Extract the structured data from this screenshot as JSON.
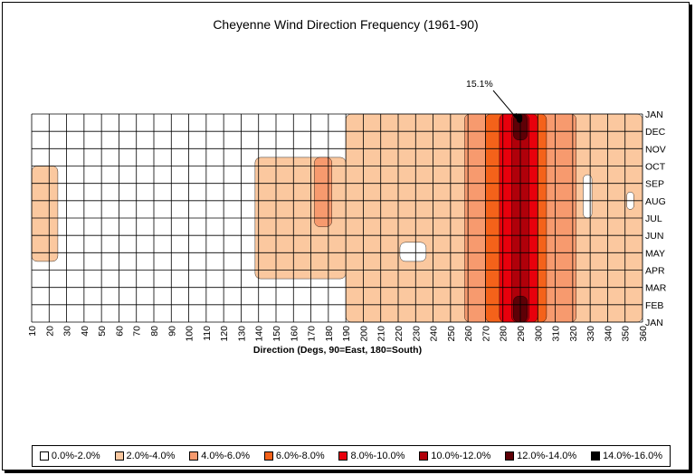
{
  "chart_data": {
    "type": "heatmap",
    "title": "Cheyenne Wind Direction Frequency (1961-90)",
    "xlabel": "Direction (Degs, 90=East, 180=South)",
    "ylabel": "",
    "x_ticks": [
      10,
      20,
      30,
      40,
      50,
      60,
      70,
      80,
      90,
      100,
      110,
      120,
      130,
      140,
      150,
      160,
      170,
      180,
      190,
      200,
      210,
      220,
      230,
      240,
      250,
      260,
      270,
      280,
      290,
      300,
      310,
      320,
      330,
      340,
      350,
      360
    ],
    "months": [
      "JAN",
      "FEB",
      "MAR",
      "APR",
      "MAY",
      "JUN",
      "JUL",
      "AUG",
      "SEP",
      "OCT",
      "NOV",
      "DEC",
      "JAN"
    ],
    "xlim": [
      10,
      360
    ],
    "annotation": {
      "text": "15.1%",
      "x": 290,
      "month": "JAN"
    },
    "legend": [
      {
        "label": "0.0%-2.0%",
        "color": "#ffffff"
      },
      {
        "label": "2.0%-4.0%",
        "color": "#fbc89f"
      },
      {
        "label": "4.0%-6.0%",
        "color": "#f79a6e"
      },
      {
        "label": "6.0%-8.0%",
        "color": "#f4621a"
      },
      {
        "label": "8.0%-10.0%",
        "color": "#e8000c"
      },
      {
        "label": "10.0%-12.0%",
        "color": "#b0000a"
      },
      {
        "label": "12.0%-14.0%",
        "color": "#5e0006"
      },
      {
        "label": "14.0%-16.0%",
        "color": "#000000"
      }
    ],
    "grid": true,
    "legend_position": "bottom",
    "regions": [
      {
        "level": 1,
        "months": [
          0,
          12
        ],
        "x": [
          190,
          360
        ]
      },
      {
        "level": 1,
        "months": [
          2.5,
          9.5
        ],
        "x": [
          138,
          190
        ]
      },
      {
        "level": 1,
        "months": [
          3.5,
          9
        ],
        "x": [
          10,
          25
        ]
      },
      {
        "level": 0,
        "months": [
          3.5,
          4.6
        ],
        "x": [
          221,
          236
        ]
      },
      {
        "level": 0,
        "months": [
          6,
          8.5
        ],
        "x": [
          326,
          331
        ]
      },
      {
        "level": 0,
        "months": [
          6.5,
          7.5
        ],
        "x": [
          351,
          355
        ]
      },
      {
        "level": 2,
        "months": [
          0,
          12
        ],
        "x": [
          258,
          322
        ]
      },
      {
        "level": 2,
        "months": [
          5.5,
          9.5
        ],
        "x": [
          172,
          182
        ]
      },
      {
        "level": 3,
        "months": [
          0,
          12
        ],
        "x": [
          270,
          305
        ]
      },
      {
        "level": 4,
        "months": [
          0,
          12
        ],
        "x": [
          278,
          300
        ]
      },
      {
        "level": 5,
        "months": [
          0,
          12
        ],
        "x": [
          285,
          295
        ]
      },
      {
        "level": 6,
        "months": [
          0,
          1.5
        ],
        "x": [
          286,
          294
        ]
      },
      {
        "level": 6,
        "months": [
          10.5,
          12
        ],
        "x": [
          286,
          294
        ]
      },
      {
        "level": 7,
        "months": [
          11.5,
          12
        ],
        "x": [
          288,
          291
        ]
      }
    ]
  }
}
